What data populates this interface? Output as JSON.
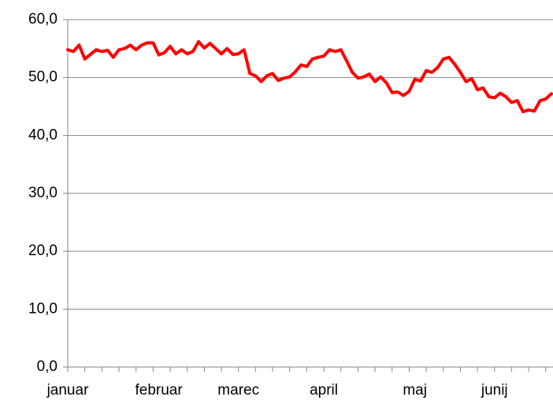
{
  "chart_data": {
    "type": "line",
    "categories": [
      "januar",
      null,
      null,
      null,
      null,
      null,
      null,
      null,
      null,
      null,
      null,
      null,
      null,
      null,
      null,
      null,
      "februar",
      null,
      null,
      null,
      null,
      null,
      null,
      null,
      null,
      null,
      null,
      null,
      null,
      null,
      "marec",
      null,
      null,
      null,
      null,
      null,
      null,
      null,
      null,
      null,
      null,
      null,
      null,
      null,
      null,
      "april",
      null,
      null,
      null,
      null,
      null,
      null,
      null,
      null,
      null,
      null,
      null,
      null,
      null,
      null,
      null,
      "maj",
      null,
      null,
      null,
      null,
      null,
      null,
      null,
      null,
      null,
      null,
      null,
      null,
      null,
      "junij",
      null,
      null,
      null,
      null,
      null,
      null,
      null,
      null,
      null,
      null
    ],
    "series": [
      {
        "color": "#ff0000",
        "values": [
          54.8,
          54.5,
          55.6,
          53.2,
          54,
          54.8,
          54.5,
          54.7,
          53.5,
          54.8,
          55,
          55.6,
          54.8,
          55.6,
          56,
          56,
          53.9,
          54.3,
          55.4,
          54.1,
          54.8,
          54.1,
          54.5,
          56.2,
          55.1,
          55.9,
          55,
          54.1,
          55,
          54,
          54.1,
          54.8,
          50.7,
          50.3,
          49.3,
          50.3,
          50.7,
          49.5,
          49.9,
          50.1,
          51,
          52.2,
          51.9,
          53.2,
          53.5,
          53.7,
          54.8,
          54.5,
          54.8,
          52.9,
          50.9,
          49.9,
          50.1,
          50.6,
          49.3,
          50.1,
          49.1,
          47.4,
          47.5,
          46.9,
          47.6,
          49.7,
          49.4,
          51.2,
          50.9,
          51.7,
          53.2,
          53.5,
          52.3,
          50.9,
          49.3,
          49.8,
          47.9,
          48.2,
          46.7,
          46.5,
          47.3,
          46.7,
          45.7,
          46,
          44.1,
          44.4,
          44.2,
          46,
          46.3,
          47.2
        ]
      }
    ],
    "ylim": [
      0,
      60
    ],
    "yticks": [
      {
        "value": 0,
        "label": "0,0"
      },
      {
        "value": 10,
        "label": "10,0"
      },
      {
        "value": 20,
        "label": "20,0"
      },
      {
        "value": 30,
        "label": "30,0"
      },
      {
        "value": 40,
        "label": "40,0"
      },
      {
        "value": 50,
        "label": "50,0"
      },
      {
        "value": 60,
        "label": "60,0"
      }
    ],
    "grid": true
  }
}
